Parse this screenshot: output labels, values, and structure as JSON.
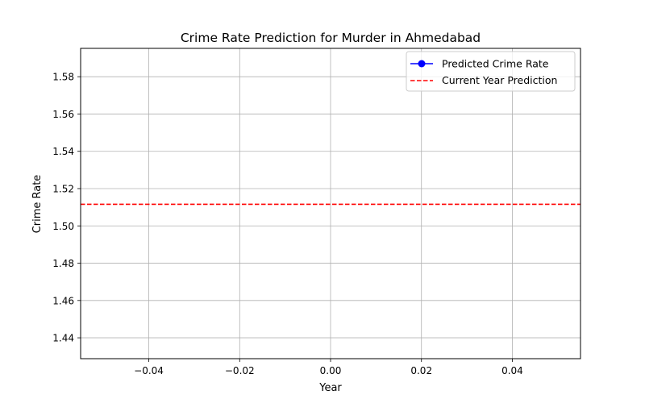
{
  "chart_data": {
    "type": "line",
    "title": "Crime Rate Prediction for Murder in Ahmedabad",
    "xlabel": "Year",
    "ylabel": "Crime Rate",
    "xlim": [
      -0.055,
      0.055
    ],
    "ylim": [
      1.4288,
      1.5952
    ],
    "x_ticks": [
      -0.04,
      -0.02,
      0.0,
      0.02,
      0.04
    ],
    "x_tick_labels": [
      "−0.04",
      "−0.02",
      "0.00",
      "0.02",
      "0.04"
    ],
    "y_ticks": [
      1.44,
      1.46,
      1.48,
      1.5,
      1.52,
      1.54,
      1.56,
      1.58
    ],
    "y_tick_labels": [
      "1.44",
      "1.46",
      "1.48",
      "1.50",
      "1.52",
      "1.54",
      "1.56",
      "1.58"
    ],
    "grid": true,
    "legend_position": "top-right",
    "series": [
      {
        "name": "Predicted Crime Rate",
        "style": "solid-line-circle-markers",
        "color": "#0000ff",
        "x": [],
        "y": []
      }
    ],
    "reference_lines": [
      {
        "name": "Current Year Prediction",
        "orientation": "horizontal",
        "y": 1.5116,
        "style": "dashed",
        "color": "#ff0000"
      }
    ]
  }
}
